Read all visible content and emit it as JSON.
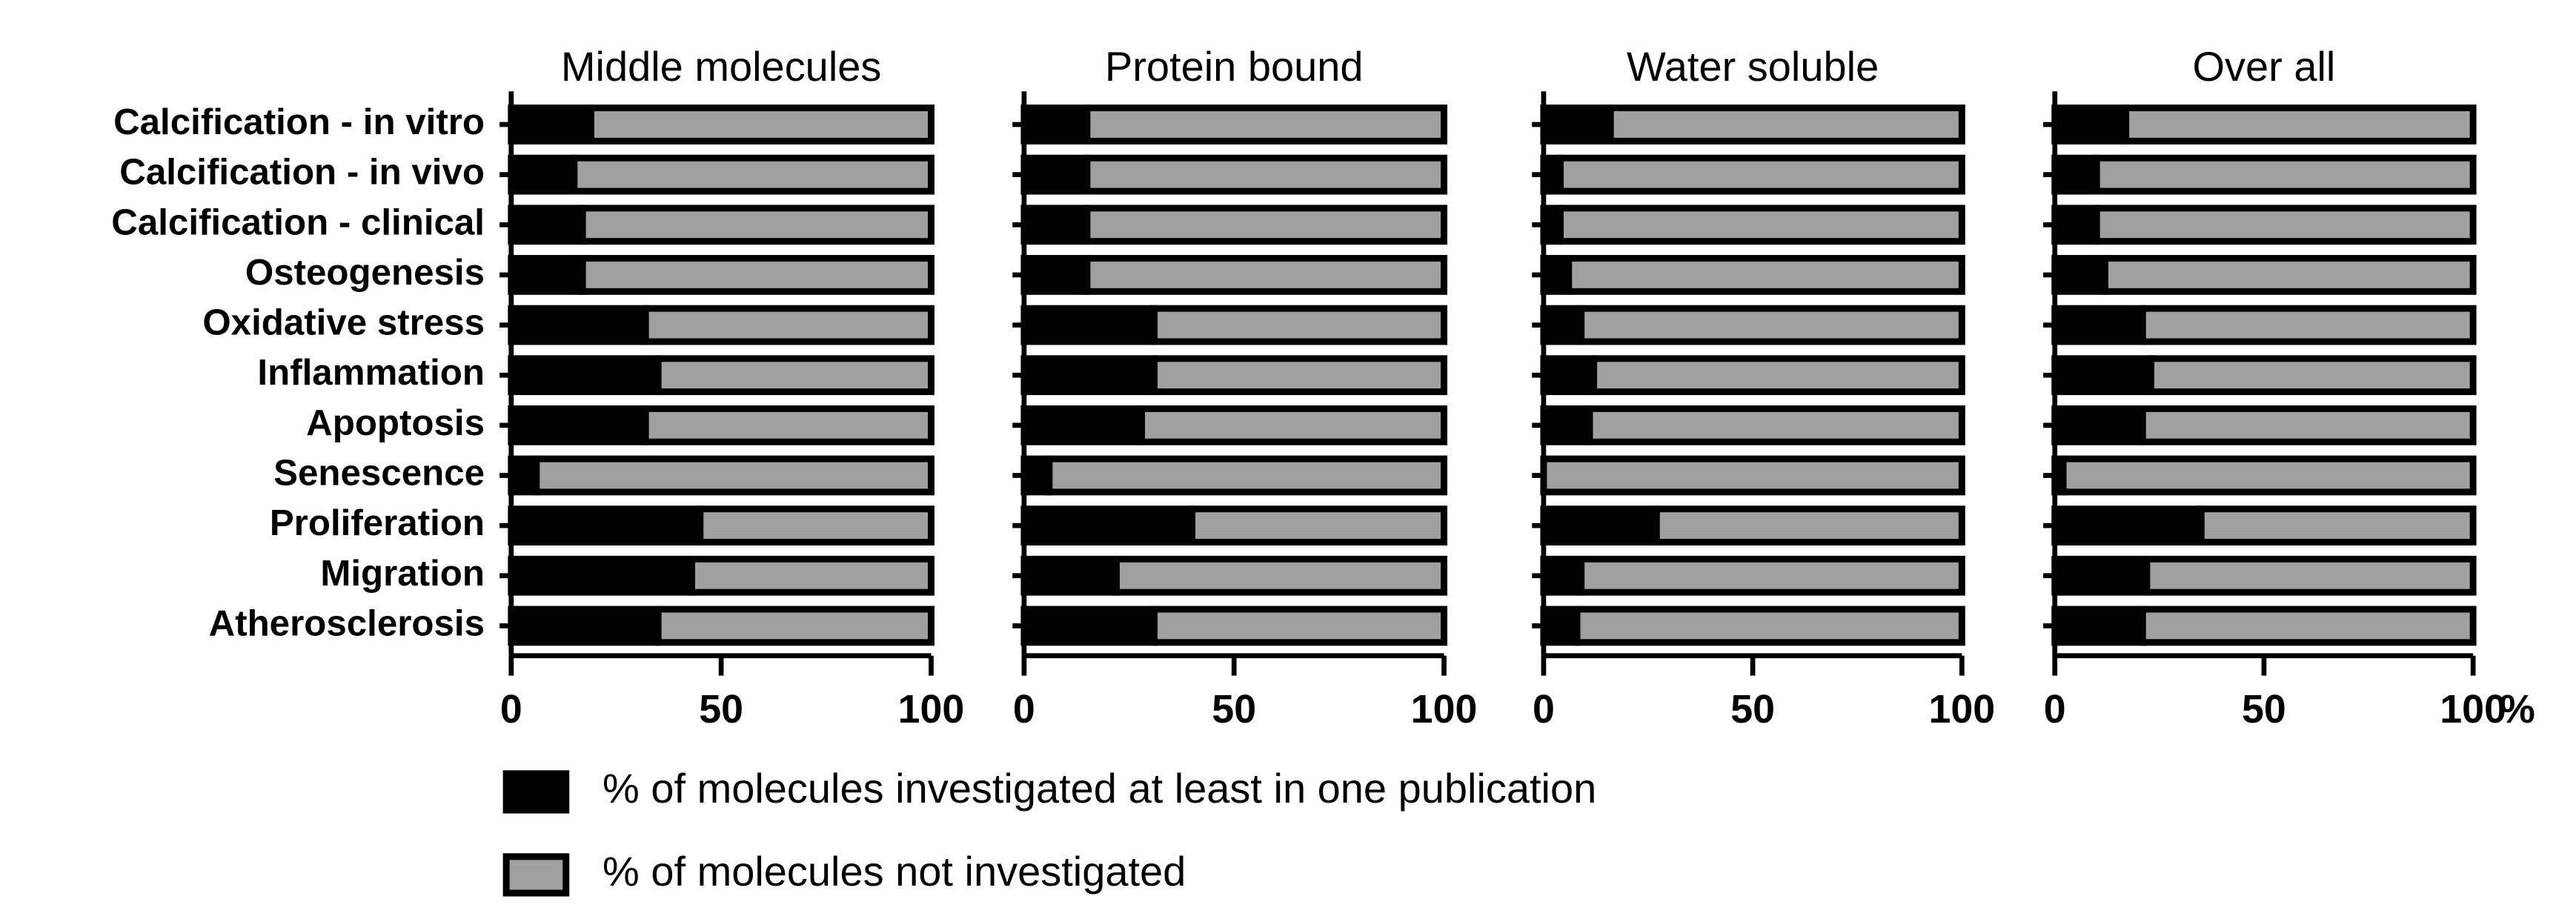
{
  "chart_data": [
    {
      "type": "bar",
      "orientation": "horizontal",
      "stacked": true,
      "title": "Middle molecules",
      "categories": [
        "Calcification - in vitro",
        "Calcification - in vivo",
        "Calcification - clinical",
        "Osteogenesis",
        "Oxidative stress",
        "Inflammation",
        "Apoptosis",
        "Senescence",
        "Proliferation",
        "Migration",
        "Atherosclerosis"
      ],
      "series": [
        {
          "name": "% of molecules investigated at least in one publication",
          "color": "#000000",
          "values": [
            19,
            15,
            17,
            17,
            32,
            35,
            32,
            6,
            45,
            43,
            35
          ]
        },
        {
          "name": "% of molecules not investigated",
          "color": "#a0a0a0",
          "values": [
            81,
            85,
            83,
            83,
            68,
            65,
            68,
            94,
            55,
            57,
            65
          ]
        }
      ],
      "xlim": [
        0,
        100
      ],
      "xticks": [
        0,
        50,
        100
      ]
    },
    {
      "type": "bar",
      "orientation": "horizontal",
      "stacked": true,
      "title": "Protein bound",
      "series": [
        {
          "color": "#000000",
          "values": [
            15,
            15,
            15,
            15,
            31,
            31,
            28,
            6,
            40,
            22,
            31
          ]
        },
        {
          "color": "#a0a0a0",
          "values": [
            85,
            85,
            85,
            85,
            69,
            69,
            72,
            94,
            60,
            78,
            69
          ]
        }
      ],
      "xlim": [
        0,
        100
      ],
      "xticks": [
        0,
        50,
        100
      ]
    },
    {
      "type": "bar",
      "orientation": "horizontal",
      "stacked": true,
      "title": "Water soluble",
      "series": [
        {
          "color": "#000000",
          "values": [
            16,
            4,
            4,
            6,
            9,
            12,
            11,
            0,
            27,
            9,
            8
          ]
        },
        {
          "color": "#a0a0a0",
          "values": [
            84,
            96,
            96,
            94,
            91,
            88,
            89,
            100,
            73,
            91,
            92
          ]
        }
      ],
      "xlim": [
        0,
        100
      ],
      "xticks": [
        0,
        50,
        100
      ]
    },
    {
      "type": "bar",
      "orientation": "horizontal",
      "stacked": true,
      "title": "Over all",
      "xlabel": "%",
      "series": [
        {
          "color": "#000000",
          "values": [
            17,
            10,
            10,
            12,
            21,
            23,
            21,
            2,
            35,
            22,
            21
          ]
        },
        {
          "color": "#a0a0a0",
          "values": [
            83,
            90,
            90,
            88,
            79,
            77,
            79,
            98,
            65,
            78,
            79
          ]
        }
      ],
      "xlim": [
        0,
        100
      ],
      "xticks": [
        0,
        50,
        100
      ]
    }
  ]
}
